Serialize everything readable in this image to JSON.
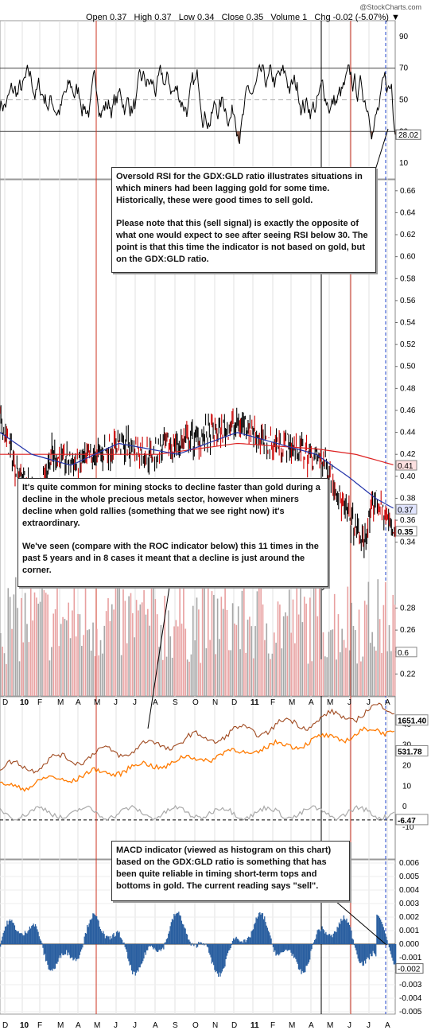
{
  "header": {
    "watermark": "@StockCharts.com",
    "ohlc": "Open 0.37   High 0.37   Low 0.34   Close 0.35   Volume 1   Chg -0.02 (-5.07%) ▼"
  },
  "notes": {
    "rsi": [
      "Oversold RSI for the GDX:GLD ratio illustrates situations in which miners had been lagging gold for some time. Historically, these were good times to sell gold.",
      "Please note that this (sell signal) is exactly the opposite of what one would expect to see after seeing RSI below 30. The point is that this time the indicator is not based on gold, but on the GDX:GLD ratio."
    ],
    "miners": [
      "It's quite common for mining stocks to decline faster than gold during a decline in the whole precious metals sector, however when miners decline when gold rallies (something that we see right now) it's extraordinary.",
      "We've seen (compare with the ROC indicator below) this 11 times in the past 5 years and in 8 cases it meant that a decline is just around the corner."
    ],
    "macd": "MACD indicator (viewed as histogram on this chart) based on the GDX:GLD ratio is something that has been quite reliable in timing short-term tops and bottoms in gold. The current reading says \"sell\"."
  },
  "x_axis": {
    "labels": [
      "D",
      "10",
      "F",
      "M",
      "A",
      "M",
      "J",
      "J",
      "A",
      "S",
      "O",
      "N",
      "D",
      "11",
      "F",
      "M",
      "A",
      "M",
      "J",
      "J",
      "A"
    ]
  },
  "chart_data": [
    {
      "type": "line",
      "name": "RSI",
      "ylim": [
        0,
        100
      ],
      "ticks": [
        90,
        70,
        50,
        30,
        10
      ],
      "reference_lines": [
        70,
        50,
        30
      ],
      "last_value_label": "28.02",
      "last_value": 28.02
    },
    {
      "type": "line",
      "name": "GDX:GLD ratio (price with moving averages)",
      "ylim": [
        0.2,
        0.67
      ],
      "ticks": [
        "0.66",
        "0.64",
        "0.62",
        "0.60",
        "0.58",
        "0.56",
        "0.54",
        "0.52",
        "0.50",
        "0.48",
        "0.46",
        "0.44",
        "0.42",
        "0.40",
        "0.38",
        "0.36",
        "0.34",
        "0.28",
        "0.26",
        "0.24",
        "0.22"
      ],
      "series_last_labels": {
        "ma_red": "0.41",
        "ma_blue": "0.37",
        "price": "0.35",
        "volume": "0.6"
      },
      "price_anchors": [
        [
          0,
          0.45
        ],
        [
          0.04,
          0.41
        ],
        [
          0.09,
          0.38
        ],
        [
          0.13,
          0.42
        ],
        [
          0.2,
          0.41
        ],
        [
          0.3,
          0.43
        ],
        [
          0.38,
          0.42
        ],
        [
          0.45,
          0.43
        ],
        [
          0.55,
          0.44
        ],
        [
          0.62,
          0.45
        ],
        [
          0.67,
          0.43
        ],
        [
          0.72,
          0.43
        ],
        [
          0.78,
          0.42
        ],
        [
          0.83,
          0.41
        ],
        [
          0.87,
          0.37
        ],
        [
          0.92,
          0.34
        ],
        [
          0.95,
          0.38
        ],
        [
          0.98,
          0.36
        ],
        [
          1,
          0.35
        ]
      ],
      "ma_red_anchors": [
        [
          0,
          0.42
        ],
        [
          0.2,
          0.42
        ],
        [
          0.4,
          0.42
        ],
        [
          0.6,
          0.43
        ],
        [
          0.8,
          0.425
        ],
        [
          0.9,
          0.42
        ],
        [
          1,
          0.41
        ]
      ],
      "ma_blue_anchors": [
        [
          0,
          0.44
        ],
        [
          0.08,
          0.42
        ],
        [
          0.18,
          0.41
        ],
        [
          0.3,
          0.43
        ],
        [
          0.45,
          0.42
        ],
        [
          0.6,
          0.44
        ],
        [
          0.7,
          0.43
        ],
        [
          0.8,
          0.42
        ],
        [
          0.88,
          0.4
        ],
        [
          0.95,
          0.38
        ],
        [
          1,
          0.37
        ]
      ]
    },
    {
      "type": "line",
      "name": "Gold / HUI comparison",
      "ticks": [
        "40",
        "30",
        "20",
        "10",
        "0",
        "-10"
      ],
      "series_last_labels": {
        "dark": "1651.40",
        "orange": "531.78",
        "roc": "-6.47"
      }
    },
    {
      "type": "bar",
      "name": "MACD histogram",
      "ylim": [
        -0.005,
        0.006
      ],
      "ticks": [
        "0.006",
        "0.005",
        "0.004",
        "0.003",
        "0.002",
        "0.001",
        "0.000",
        "-0.001",
        "-0.002",
        "-0.003",
        "-0.004",
        "-0.005"
      ],
      "last_value_label": "-0.002"
    }
  ],
  "colors": {
    "price": "#000000",
    "price_down": "#cc0000",
    "ma_red": "#dd2222",
    "ma_blue": "#2233aa",
    "macd": "#2a5fa0",
    "vol_red": "#e8a0a0",
    "vol_gray": "#a6a6a6",
    "orange": "#ff7a00",
    "brown": "#a04a20"
  }
}
